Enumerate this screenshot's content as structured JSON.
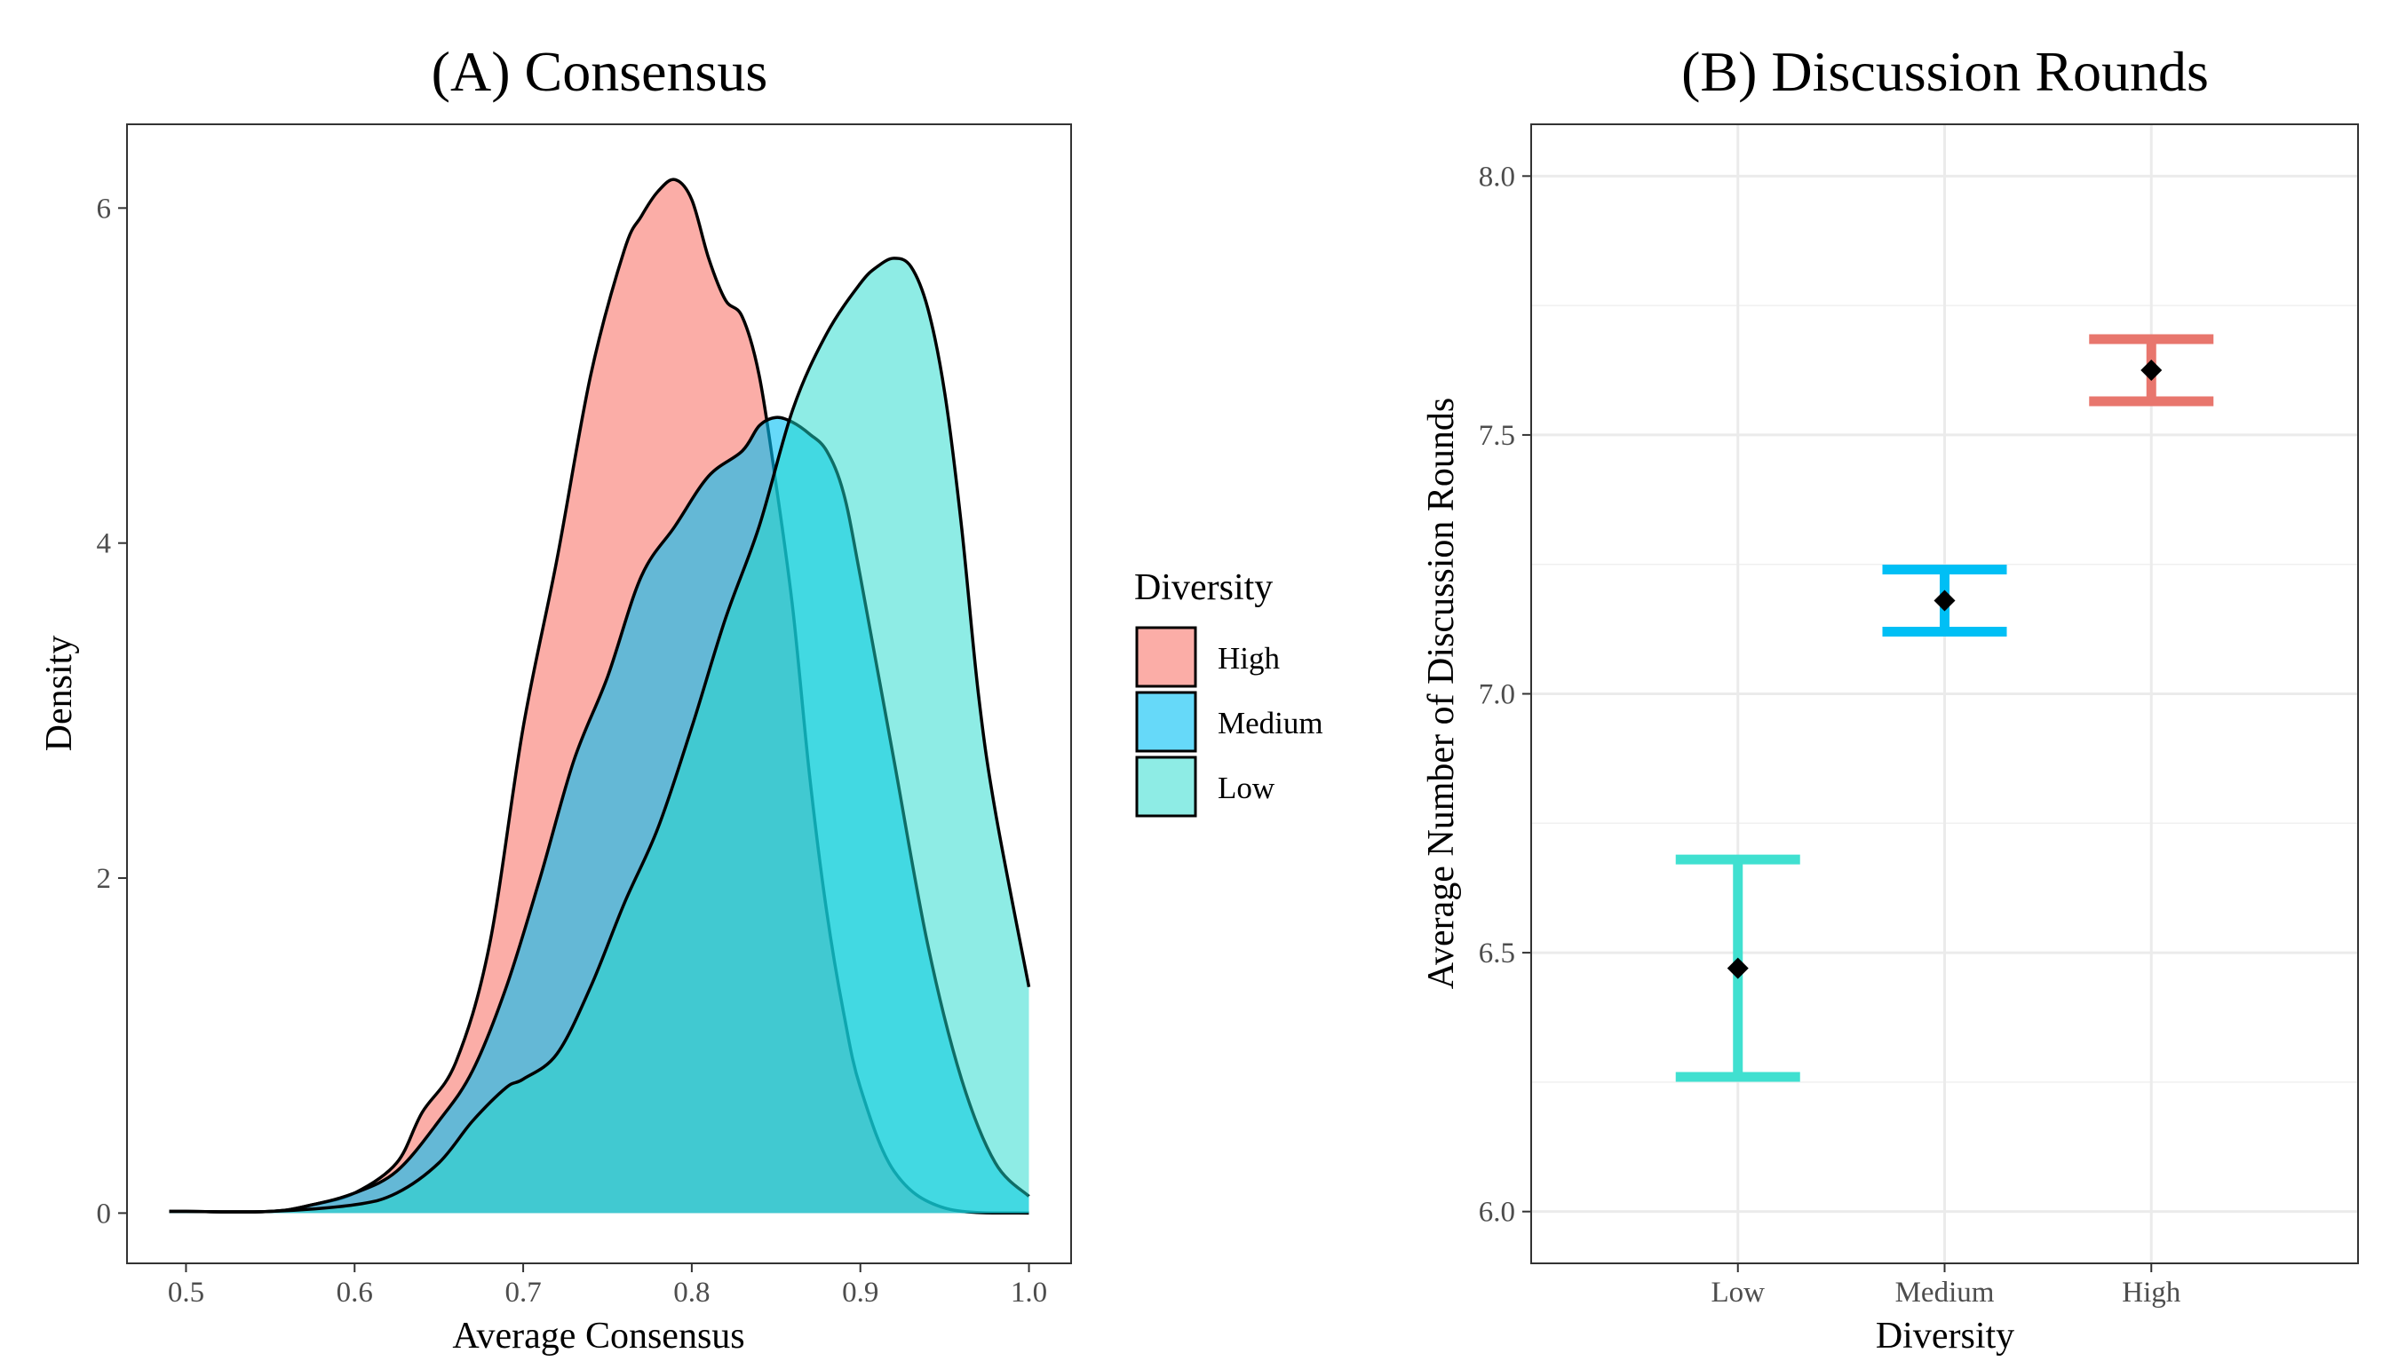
{
  "chart_data": [
    {
      "type": "area",
      "title": "(A) Consensus",
      "xlabel": "Average Consensus",
      "ylabel": "Density",
      "xlim": [
        0.465,
        1.025
      ],
      "ylim": [
        -0.3,
        6.5
      ],
      "xticks": [
        0.5,
        0.6,
        0.7,
        0.8,
        0.9,
        1.0
      ],
      "xtick_labels": [
        "0.5",
        "0.6",
        "0.7",
        "0.8",
        "0.9",
        "1.0"
      ],
      "yticks": [
        0,
        2,
        4,
        6
      ],
      "ytick_labels": [
        "0",
        "2",
        "4",
        "6"
      ],
      "grid": false,
      "legend": {
        "title": "Diversity",
        "position": "right",
        "entries": [
          {
            "label": "High",
            "color": "#F8766D"
          },
          {
            "label": "Medium",
            "color": "#00BFF5"
          },
          {
            "label": "Low",
            "color": "#1ED9CB"
          }
        ]
      },
      "series": [
        {
          "name": "High",
          "color": "#F8766D",
          "opacity": 0.6,
          "x": [
            0.49,
            0.5,
            0.55,
            0.575,
            0.6,
            0.625,
            0.64,
            0.66,
            0.68,
            0.7,
            0.72,
            0.74,
            0.76,
            0.77,
            0.78,
            0.79,
            0.8,
            0.81,
            0.82,
            0.83,
            0.84,
            0.85,
            0.86,
            0.87,
            0.88,
            0.89,
            0.9,
            0.92,
            0.95,
            1.0
          ],
          "y": [
            0.01,
            0.01,
            0.01,
            0.05,
            0.12,
            0.3,
            0.6,
            0.9,
            1.6,
            2.9,
            3.9,
            5.0,
            5.75,
            5.95,
            6.1,
            6.17,
            6.05,
            5.7,
            5.45,
            5.35,
            5.0,
            4.35,
            3.6,
            2.6,
            1.8,
            1.2,
            0.75,
            0.25,
            0.03,
            0.0
          ]
        },
        {
          "name": "Medium",
          "color": "#00BFF5",
          "opacity": 0.6,
          "x": [
            0.49,
            0.5,
            0.55,
            0.575,
            0.6,
            0.625,
            0.65,
            0.67,
            0.69,
            0.71,
            0.73,
            0.75,
            0.77,
            0.79,
            0.81,
            0.83,
            0.84,
            0.85,
            0.86,
            0.87,
            0.88,
            0.89,
            0.9,
            0.92,
            0.94,
            0.96,
            0.98,
            1.0
          ],
          "y": [
            0.01,
            0.01,
            0.01,
            0.05,
            0.12,
            0.25,
            0.55,
            0.85,
            1.35,
            2.0,
            2.7,
            3.2,
            3.8,
            4.1,
            4.4,
            4.55,
            4.7,
            4.75,
            4.72,
            4.65,
            4.55,
            4.3,
            3.8,
            2.7,
            1.6,
            0.8,
            0.3,
            0.1
          ]
        },
        {
          "name": "Low",
          "color": "#1ED9CB",
          "opacity": 0.5,
          "x": [
            0.49,
            0.5,
            0.55,
            0.6,
            0.625,
            0.65,
            0.67,
            0.69,
            0.7,
            0.72,
            0.74,
            0.76,
            0.78,
            0.8,
            0.82,
            0.84,
            0.86,
            0.88,
            0.9,
            0.91,
            0.92,
            0.93,
            0.94,
            0.95,
            0.96,
            0.97,
            0.98,
            1.0
          ],
          "y": [
            0.01,
            0.01,
            0.01,
            0.05,
            0.12,
            0.3,
            0.55,
            0.75,
            0.8,
            0.95,
            1.35,
            1.85,
            2.3,
            2.9,
            3.55,
            4.1,
            4.8,
            5.25,
            5.55,
            5.65,
            5.7,
            5.65,
            5.4,
            4.9,
            4.1,
            3.1,
            2.4,
            1.35
          ]
        }
      ]
    },
    {
      "type": "scatter",
      "title": "(B) Discussion Rounds",
      "xlabel": "Diversity",
      "ylabel": "Average Number of Discussion Rounds",
      "categories": [
        "Low",
        "Medium",
        "High"
      ],
      "ylim": [
        5.9,
        8.1
      ],
      "yticks": [
        6.0,
        6.5,
        7.0,
        7.5,
        8.0
      ],
      "ytick_labels": [
        "6.0",
        "6.5",
        "7.0",
        "7.5",
        "8.0"
      ],
      "grid": true,
      "series": [
        {
          "mean": [
            6.47,
            7.18,
            7.625
          ],
          "lower": [
            6.26,
            7.12,
            7.565
          ],
          "upper": [
            6.68,
            7.24,
            7.685
          ],
          "colors": [
            "#40E0D0",
            "#00BFF5",
            "#E8766D"
          ]
        }
      ]
    }
  ]
}
